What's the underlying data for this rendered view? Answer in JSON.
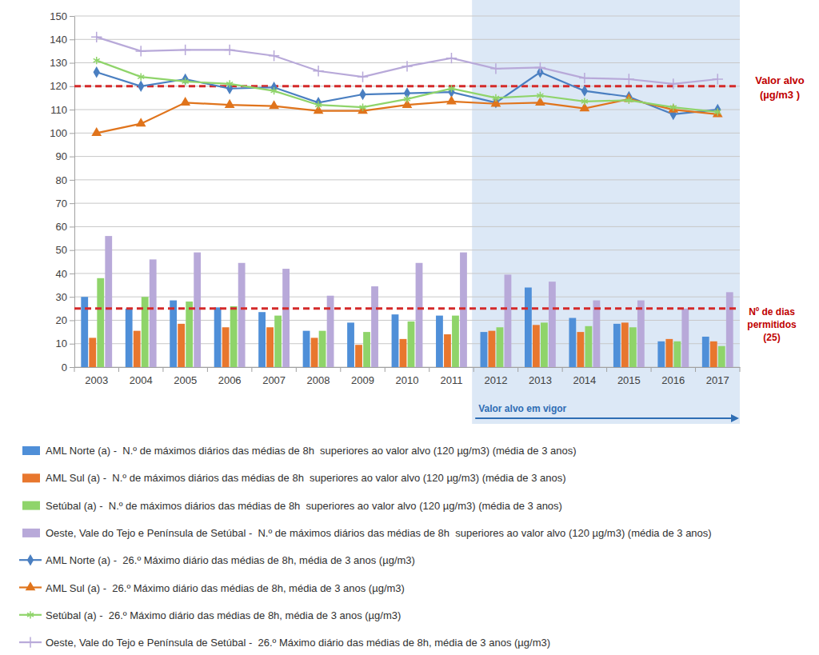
{
  "chart_data": {
    "type": "bar",
    "categories": [
      "2003",
      "2004",
      "2005",
      "2006",
      "2007",
      "2008",
      "2009",
      "2010",
      "2011",
      "2012",
      "2013",
      "2014",
      "2015",
      "2016",
      "2017"
    ],
    "ylim": [
      0,
      150
    ],
    "yticks": [
      0,
      10,
      20,
      30,
      40,
      50,
      60,
      70,
      80,
      90,
      100,
      110,
      120,
      130,
      140,
      150
    ],
    "grid": true,
    "legend": "bottom",
    "series": [
      {
        "name": "AML Norte (a) -  N.º de máximos diários das médias de 8h  superiores ao valor alvo (120 µg/m3) (média de 3 anos)",
        "type": "bar",
        "color": "#4f8fd8",
        "values": [
          30,
          25,
          28.5,
          25.5,
          23.5,
          15.5,
          19,
          22.5,
          22,
          15,
          34,
          21,
          18.5,
          11,
          13
        ]
      },
      {
        "name": "AML Sul (a) -  N.º de máximos diários das médias de 8h  superiores ao valor alvo (120 µg/m3) (média de 3 anos)",
        "type": "bar",
        "color": "#e8772e",
        "values": [
          12.5,
          15.5,
          18.5,
          17,
          17,
          12.5,
          9.5,
          12,
          14,
          15.5,
          18,
          15,
          19,
          12,
          11
        ]
      },
      {
        "name": "Setúbal (a) -  N.º de máximos diários das médias de 8h  superiores ao valor alvo (120 µg/m3) (média de 3 anos)",
        "type": "bar",
        "color": "#8fd46a",
        "values": [
          38,
          30,
          28,
          26,
          22,
          15.5,
          15,
          19.5,
          22,
          17,
          19,
          17.5,
          17,
          11,
          9
        ]
      },
      {
        "name": "Oeste, Vale do Tejo e Península de Setúbal -  N.º de máximos diários das médias de 8h  superiores ao valor alvo (120 µg/m3) (média de 3 anos)",
        "type": "bar",
        "color": "#b8a9d9",
        "values": [
          56,
          46,
          49,
          44.5,
          42,
          30.5,
          34.5,
          44.5,
          49,
          39.5,
          36.5,
          28.5,
          28.5,
          25,
          32
        ]
      },
      {
        "name": "AML Norte (a) -  26.º Máximo diário das médias de 8h, média de 3 anos (µg/m3)",
        "type": "line",
        "color": "#4a7fc1",
        "marker": "diamond",
        "values": [
          126,
          120,
          123,
          119,
          119.5,
          113,
          116.5,
          117,
          117.5,
          113,
          126,
          118,
          115.5,
          108,
          110
        ]
      },
      {
        "name": "AML Sul (a) -  26.º Máximo diário das médias de 8h, média de 3 anos (µg/m3)",
        "type": "line",
        "color": "#e0741c",
        "marker": "triangle",
        "values": [
          100,
          104,
          113,
          112,
          111.5,
          109.5,
          109.5,
          112,
          113.5,
          112.5,
          113,
          110.5,
          114.5,
          110,
          108
        ]
      },
      {
        "name": "Setúbal (a) -  26.º Máximo diário das médias de 8h, média de 3 anos (µg/m3)",
        "type": "line",
        "color": "#8fd46a",
        "marker": "star",
        "values": [
          131,
          124,
          122,
          121,
          118,
          112,
          111,
          114.5,
          119,
          115,
          116,
          113.5,
          114,
          111,
          109
        ]
      },
      {
        "name": "Oeste, Vale do Tejo e Península de Setúbal -  26.º Máximo diário das médias de 8h, média de 3 anos (µg/m3)",
        "type": "line",
        "color": "#b8a9d9",
        "marker": "plus",
        "values": [
          141,
          135,
          135.5,
          135.5,
          133,
          126.5,
          124,
          128.5,
          132,
          127.5,
          128,
          123.5,
          123,
          121,
          123
        ]
      }
    ],
    "annotations": [
      {
        "type": "hline",
        "value": 120,
        "color": "#d42a2a",
        "text": [
          "Valor alvo",
          "(µg/m3 )"
        ]
      },
      {
        "type": "hline",
        "value": 25,
        "color": "#d42a2a",
        "text": [
          "Nº de dias",
          "permitidos",
          "(25)"
        ]
      },
      {
        "type": "span",
        "from": "2012",
        "to": "2017",
        "color": "#2e6db4",
        "text": [
          "Valor alvo em vigor"
        ]
      }
    ]
  }
}
